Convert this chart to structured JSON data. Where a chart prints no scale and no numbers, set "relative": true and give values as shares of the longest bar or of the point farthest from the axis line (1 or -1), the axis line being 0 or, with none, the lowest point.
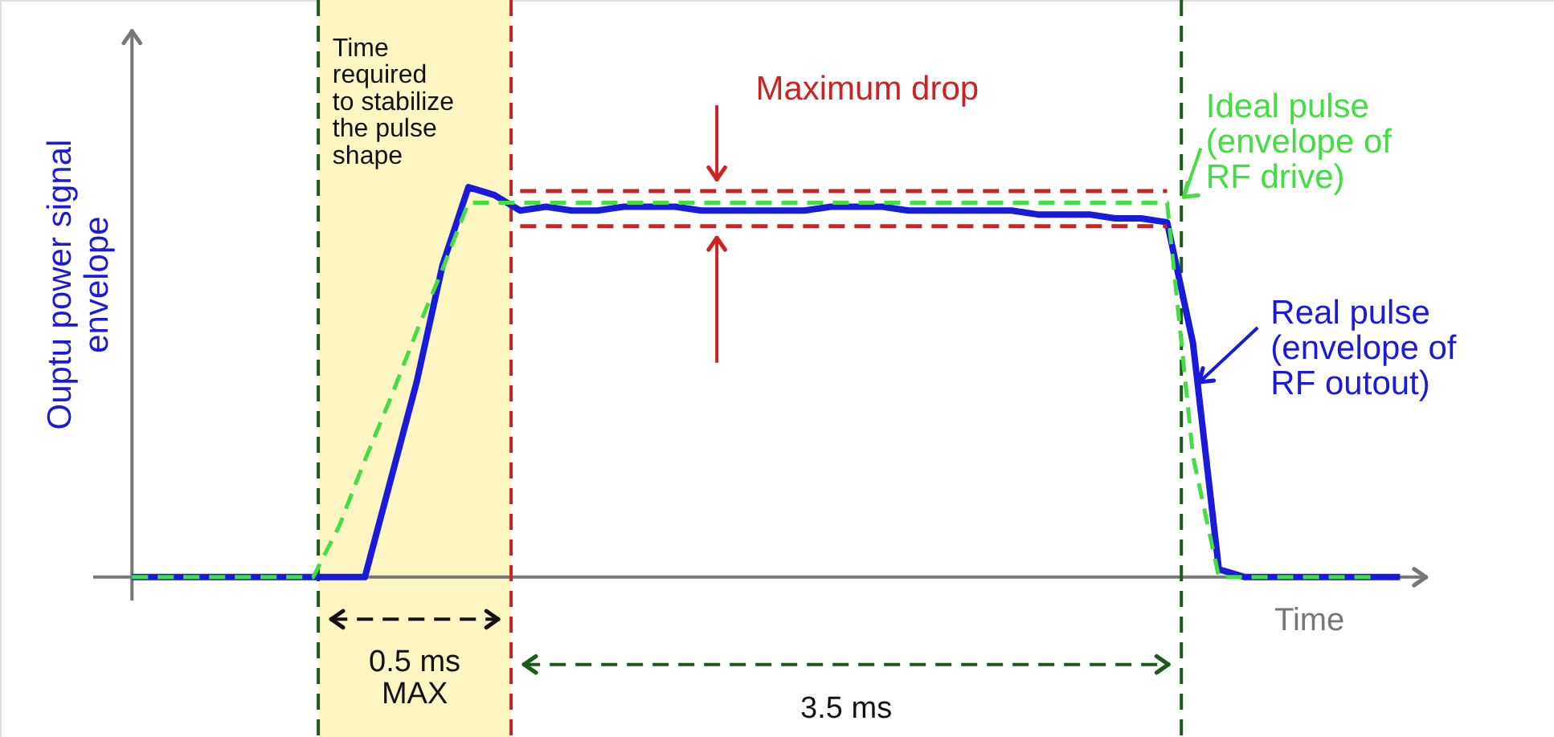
{
  "chart_data": {
    "type": "line",
    "relative": true,
    "xlabel": "Time",
    "ylabel": "Ouptu power signal\nenvelope",
    "categories": [
      null,
      null,
      null,
      null,
      null,
      null,
      null,
      null,
      null,
      null,
      null,
      null,
      null,
      null,
      null,
      null,
      null,
      null,
      null,
      null,
      null,
      null,
      null,
      null,
      null,
      null,
      null,
      null,
      null,
      null,
      null,
      null,
      null,
      null,
      null,
      null,
      null,
      null,
      null,
      null,
      null,
      null,
      null,
      null,
      null,
      null,
      null,
      null,
      null,
      null
    ],
    "series": [
      {
        "name": "Real pulse (envelope of RF outout)",
        "color": "#1a1adb",
        "line_style": "solid",
        "values": [
          0,
          0,
          0,
          0,
          0,
          0,
          0,
          0,
          0,
          0,
          0.25,
          0.5,
          0.8,
          1,
          0.98,
          0.94,
          0.95,
          0.94,
          0.94,
          0.95,
          0.95,
          0.95,
          0.94,
          0.94,
          0.94,
          0.94,
          0.94,
          0.95,
          0.95,
          0.95,
          0.94,
          0.94,
          0.94,
          0.94,
          0.94,
          0.93,
          0.93,
          0.93,
          0.92,
          0.92,
          0.91,
          0.6,
          0.02,
          0,
          0,
          0,
          0,
          0,
          0,
          0
        ]
      },
      {
        "name": "Ideal pulse (envelope of RF drive)",
        "color": "#44dd44",
        "line_style": "dashed",
        "values": [
          0,
          0,
          0,
          0,
          0,
          0,
          0,
          0,
          0.13,
          0.3,
          0.46,
          0.63,
          0.79,
          0.96,
          0.96,
          0.96,
          0.96,
          0.96,
          0.96,
          0.96,
          0.96,
          0.96,
          0.96,
          0.96,
          0.96,
          0.96,
          0.96,
          0.96,
          0.96,
          0.96,
          0.96,
          0.96,
          0.96,
          0.96,
          0.96,
          0.96,
          0.96,
          0.96,
          0.96,
          0.96,
          0.96,
          0.31,
          0,
          0,
          0,
          0,
          0,
          0,
          0,
          null
        ]
      },
      {
        "color": "#cc2222",
        "line_style": "dashed",
        "values": [
          null,
          null,
          null,
          null,
          null,
          null,
          null,
          null,
          null,
          null,
          null,
          null,
          null,
          null,
          null,
          0.99,
          0.99,
          0.99,
          0.99,
          0.99,
          0.99,
          0.99,
          0.99,
          0.99,
          0.99,
          0.99,
          0.99,
          0.99,
          0.99,
          0.99,
          0.99,
          0.99,
          0.99,
          0.99,
          0.99,
          0.99,
          0.99,
          0.99,
          0.99,
          0.99,
          0.99,
          null,
          null,
          null,
          null,
          null,
          null,
          null,
          null,
          null
        ]
      },
      {
        "color": "#cc2222",
        "line_style": "dashed",
        "values": [
          null,
          null,
          null,
          null,
          null,
          null,
          null,
          null,
          null,
          null,
          null,
          null,
          null,
          null,
          null,
          0.9,
          0.9,
          0.9,
          0.9,
          0.9,
          0.9,
          0.9,
          0.9,
          0.9,
          0.9,
          0.9,
          0.9,
          0.9,
          0.9,
          0.9,
          0.9,
          0.9,
          0.9,
          0.9,
          0.9,
          0.9,
          0.9,
          0.9,
          0.9,
          0.9,
          0.9,
          null,
          null,
          null,
          null,
          null,
          null,
          null,
          null,
          null
        ]
      }
    ],
    "annotations": [
      "Time\nrequired\nto stabilize\nthe pulse\nshape",
      "Maximum drop",
      "0.5 ms\nMAX",
      "3.5 ms"
    ]
  }
}
